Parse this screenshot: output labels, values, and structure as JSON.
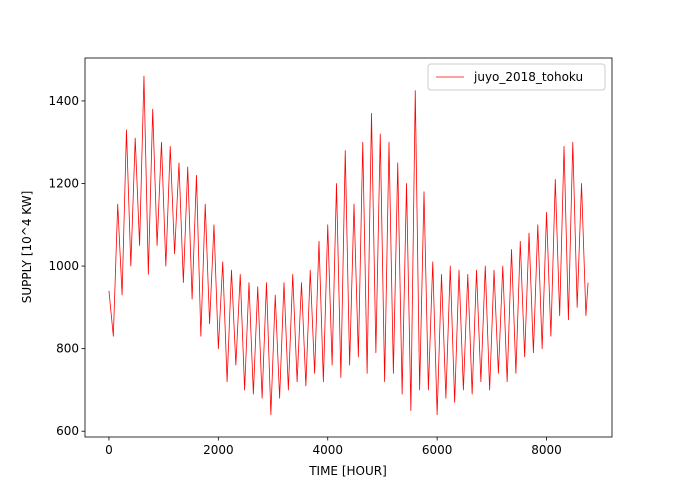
{
  "chart_data": {
    "type": "line",
    "xlabel": "TIME [HOUR]",
    "ylabel": "SUPPLY [10^4 KW]",
    "xlim": [
      -438,
      9197
    ],
    "ylim": [
      586,
      1504
    ],
    "xticks": [
      0,
      2000,
      4000,
      6000,
      8000
    ],
    "yticks": [
      600,
      800,
      1000,
      1200,
      1400
    ],
    "legend": "upper right",
    "x": [
      0,
      80,
      160,
      240,
      320,
      400,
      480,
      560,
      640,
      720,
      800,
      880,
      960,
      1040,
      1120,
      1200,
      1280,
      1360,
      1440,
      1520,
      1600,
      1680,
      1760,
      1840,
      1920,
      2000,
      2080,
      2160,
      2240,
      2320,
      2400,
      2480,
      2560,
      2640,
      2720,
      2800,
      2880,
      2960,
      3040,
      3120,
      3200,
      3280,
      3360,
      3440,
      3520,
      3600,
      3680,
      3760,
      3840,
      3920,
      4000,
      4080,
      4160,
      4240,
      4320,
      4400,
      4480,
      4560,
      4640,
      4720,
      4800,
      4880,
      4960,
      5040,
      5120,
      5200,
      5280,
      5360,
      5440,
      5520,
      5600,
      5680,
      5760,
      5840,
      5920,
      6000,
      6080,
      6160,
      6240,
      6320,
      6400,
      6480,
      6560,
      6640,
      6720,
      6800,
      6880,
      6960,
      7040,
      7120,
      7200,
      7280,
      7360,
      7440,
      7520,
      7600,
      7680,
      7760,
      7840,
      7920,
      8000,
      8080,
      8160,
      8240,
      8320,
      8400,
      8480,
      8560,
      8640,
      8720,
      8759
    ],
    "series": [
      {
        "name": "juyo_2018_tohoku",
        "color": "#ff0000",
        "values": [
          940,
          830,
          1150,
          930,
          1330,
          1000,
          1310,
          1050,
          1460,
          980,
          1380,
          1050,
          1300,
          1000,
          1290,
          1030,
          1250,
          960,
          1240,
          920,
          1220,
          830,
          1150,
          860,
          1100,
          800,
          1010,
          720,
          990,
          760,
          980,
          700,
          960,
          690,
          950,
          680,
          960,
          640,
          930,
          680,
          960,
          700,
          980,
          720,
          960,
          710,
          990,
          740,
          1060,
          720,
          1100,
          760,
          1200,
          730,
          1280,
          760,
          1150,
          780,
          1300,
          740,
          1370,
          790,
          1320,
          720,
          1300,
          740,
          1250,
          690,
          1200,
          650,
          1425,
          700,
          1180,
          700,
          1010,
          640,
          980,
          680,
          1000,
          670,
          990,
          700,
          980,
          690,
          990,
          720,
          1000,
          700,
          990,
          740,
          1000,
          720,
          1040,
          740,
          1060,
          780,
          1080,
          790,
          1100,
          800,
          1130,
          830,
          1210,
          880,
          1290,
          870,
          1300,
          900,
          1200,
          880,
          960
        ]
      }
    ]
  }
}
